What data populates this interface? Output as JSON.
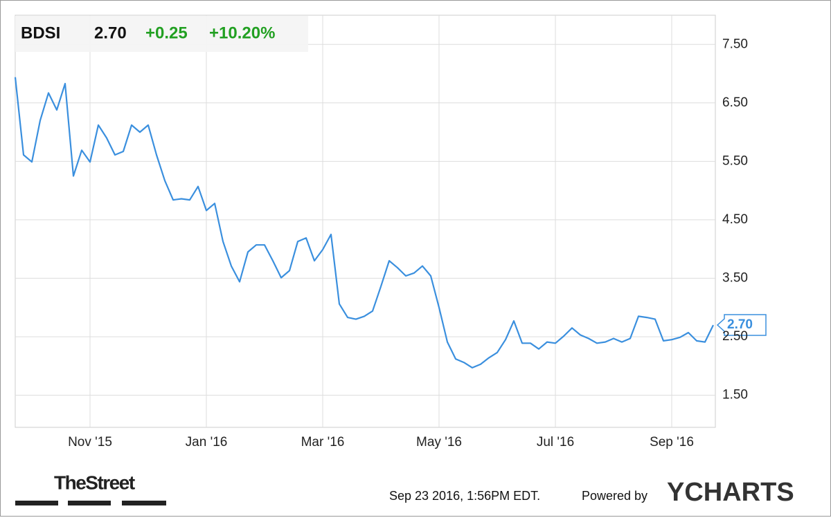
{
  "chart_data": {
    "type": "line",
    "ticker": "BDSI",
    "price": "2.70",
    "change": "+0.25",
    "change_percent": "+10.20%",
    "change_color": "#22a022",
    "categories": [
      null,
      null,
      null,
      null,
      null,
      null,
      null,
      null,
      null,
      "Nov '15",
      null,
      null,
      null,
      null,
      null,
      null,
      null,
      null,
      null,
      null,
      null,
      null,
      null,
      "Jan '16",
      null,
      null,
      null,
      null,
      null,
      null,
      null,
      null,
      null,
      null,
      null,
      null,
      null,
      "Mar '16",
      null,
      null,
      null,
      null,
      null,
      null,
      null,
      null,
      null,
      null,
      null,
      null,
      null,
      "May '16",
      null,
      null,
      null,
      null,
      null,
      null,
      null,
      null,
      null,
      null,
      null,
      null,
      null,
      "Jul '16",
      null,
      null,
      null,
      null,
      null,
      null,
      null,
      null,
      null,
      null,
      null,
      null,
      null,
      "Sep '16",
      null,
      null,
      null,
      null,
      null
    ],
    "series": [
      {
        "color": "#3a8fde",
        "values": [
          6.94,
          5.61,
          5.49,
          6.2,
          6.67,
          6.38,
          6.83,
          5.25,
          5.69,
          5.49,
          6.12,
          5.9,
          5.61,
          5.67,
          6.12,
          6.0,
          6.12,
          5.61,
          5.17,
          4.84,
          4.86,
          4.84,
          5.07,
          4.66,
          4.78,
          4.13,
          3.71,
          3.44,
          3.95,
          4.07,
          4.07,
          3.8,
          3.51,
          3.63,
          4.13,
          4.19,
          3.8,
          3.99,
          4.25,
          3.06,
          2.83,
          2.8,
          2.85,
          2.94,
          3.36,
          3.8,
          3.68,
          3.54,
          3.59,
          3.71,
          3.54,
          3.0,
          2.41,
          2.12,
          2.06,
          1.97,
          2.03,
          2.14,
          2.23,
          2.45,
          2.77,
          2.39,
          2.39,
          2.29,
          2.41,
          2.39,
          2.51,
          2.65,
          2.53,
          2.47,
          2.39,
          2.41,
          2.47,
          2.41,
          2.47,
          2.85,
          2.83,
          2.8,
          2.43,
          2.45,
          2.49,
          2.57,
          2.43,
          2.41,
          2.7
        ]
      }
    ],
    "ylim": [
      0.95,
      8.0
    ],
    "yticks": [
      {
        "value": 1.5,
        "label": "1.50"
      },
      {
        "value": 2.5,
        "label": "2.50"
      },
      {
        "value": 3.5,
        "label": "3.50"
      },
      {
        "value": 4.5,
        "label": "4.50"
      },
      {
        "value": 5.5,
        "label": "5.50"
      },
      {
        "value": 6.5,
        "label": "6.50"
      },
      {
        "value": 7.5,
        "label": "7.50"
      }
    ],
    "grid": true
  },
  "footer": {
    "logo": "TheStreet",
    "timestamp": "Sep 23 2016, 1:56PM EDT.",
    "powered_by": "Powered by",
    "brand": "YCHARTS"
  }
}
